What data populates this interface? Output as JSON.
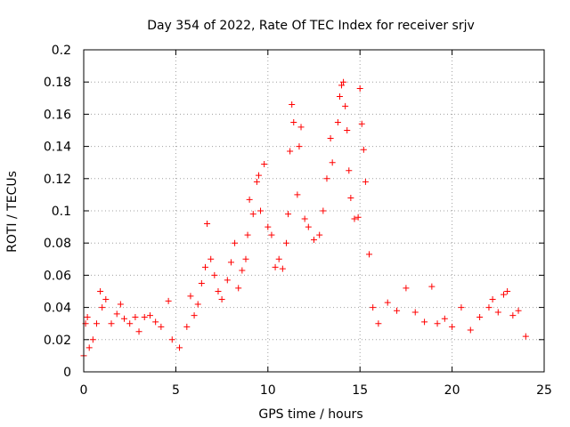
{
  "chart_data": {
    "type": "scatter",
    "title": "Day 354 of 2022, Rate Of TEC Index for receiver srjv",
    "xlabel": "GPS time / hours",
    "ylabel": "ROTI / TECUs",
    "xlim": [
      0,
      25
    ],
    "ylim": [
      0,
      0.2
    ],
    "xticks": [
      "0",
      "5",
      "10",
      "15",
      "20",
      "25"
    ],
    "yticks": [
      "0",
      "0.02",
      "0.04",
      "0.06",
      "0.08",
      "0.1",
      "0.12",
      "0.14",
      "0.16",
      "0.18",
      "0.2"
    ],
    "grid": true,
    "legend": "none",
    "marker": "plus",
    "series_color": "#ff0000",
    "series": [
      {
        "points": [
          [
            0.0,
            0.01
          ],
          [
            0.1,
            0.03
          ],
          [
            0.2,
            0.034
          ],
          [
            0.3,
            0.015
          ],
          [
            0.5,
            0.02
          ],
          [
            0.7,
            0.03
          ],
          [
            0.9,
            0.05
          ],
          [
            1.0,
            0.04
          ],
          [
            1.2,
            0.045
          ],
          [
            1.5,
            0.03
          ],
          [
            1.8,
            0.036
          ],
          [
            2.0,
            0.042
          ],
          [
            2.2,
            0.033
          ],
          [
            2.5,
            0.03
          ],
          [
            2.8,
            0.034
          ],
          [
            3.0,
            0.025
          ],
          [
            3.3,
            0.034
          ],
          [
            3.6,
            0.035
          ],
          [
            3.9,
            0.031
          ],
          [
            4.2,
            0.028
          ],
          [
            4.6,
            0.044
          ],
          [
            4.8,
            0.02
          ],
          [
            5.2,
            0.015
          ],
          [
            5.6,
            0.028
          ],
          [
            5.8,
            0.047
          ],
          [
            6.0,
            0.035
          ],
          [
            6.2,
            0.042
          ],
          [
            6.4,
            0.055
          ],
          [
            6.6,
            0.065
          ],
          [
            6.7,
            0.092
          ],
          [
            6.9,
            0.07
          ],
          [
            7.1,
            0.06
          ],
          [
            7.3,
            0.05
          ],
          [
            7.5,
            0.045
          ],
          [
            7.8,
            0.057
          ],
          [
            8.0,
            0.068
          ],
          [
            8.2,
            0.08
          ],
          [
            8.4,
            0.052
          ],
          [
            8.6,
            0.063
          ],
          [
            8.8,
            0.07
          ],
          [
            8.9,
            0.085
          ],
          [
            9.0,
            0.107
          ],
          [
            9.2,
            0.098
          ],
          [
            9.4,
            0.118
          ],
          [
            9.5,
            0.122
          ],
          [
            9.6,
            0.1
          ],
          [
            9.8,
            0.129
          ],
          [
            10.0,
            0.09
          ],
          [
            10.2,
            0.085
          ],
          [
            10.4,
            0.065
          ],
          [
            10.6,
            0.07
          ],
          [
            10.8,
            0.064
          ],
          [
            11.0,
            0.08
          ],
          [
            11.1,
            0.098
          ],
          [
            11.2,
            0.137
          ],
          [
            11.3,
            0.166
          ],
          [
            11.4,
            0.155
          ],
          [
            11.6,
            0.11
          ],
          [
            11.7,
            0.14
          ],
          [
            11.8,
            0.152
          ],
          [
            12.0,
            0.095
          ],
          [
            12.2,
            0.09
          ],
          [
            12.5,
            0.082
          ],
          [
            12.8,
            0.085
          ],
          [
            13.0,
            0.1
          ],
          [
            13.2,
            0.12
          ],
          [
            13.4,
            0.145
          ],
          [
            13.5,
            0.13
          ],
          [
            13.8,
            0.155
          ],
          [
            13.9,
            0.171
          ],
          [
            14.0,
            0.178
          ],
          [
            14.1,
            0.18
          ],
          [
            14.2,
            0.165
          ],
          [
            14.3,
            0.15
          ],
          [
            14.4,
            0.125
          ],
          [
            14.5,
            0.108
          ],
          [
            14.7,
            0.095
          ],
          [
            14.9,
            0.096
          ],
          [
            15.0,
            0.176
          ],
          [
            15.1,
            0.154
          ],
          [
            15.2,
            0.138
          ],
          [
            15.3,
            0.118
          ],
          [
            15.5,
            0.073
          ],
          [
            15.7,
            0.04
          ],
          [
            16.0,
            0.03
          ],
          [
            16.5,
            0.043
          ],
          [
            17.0,
            0.038
          ],
          [
            17.5,
            0.052
          ],
          [
            18.0,
            0.037
          ],
          [
            18.5,
            0.031
          ],
          [
            18.9,
            0.053
          ],
          [
            19.2,
            0.03
          ],
          [
            19.6,
            0.033
          ],
          [
            20.0,
            0.028
          ],
          [
            20.5,
            0.04
          ],
          [
            21.0,
            0.026
          ],
          [
            21.5,
            0.034
          ],
          [
            22.0,
            0.04
          ],
          [
            22.2,
            0.045
          ],
          [
            22.5,
            0.037
          ],
          [
            22.8,
            0.048
          ],
          [
            23.0,
            0.05
          ],
          [
            23.3,
            0.035
          ],
          [
            23.6,
            0.038
          ],
          [
            24.0,
            0.022
          ]
        ]
      }
    ]
  }
}
